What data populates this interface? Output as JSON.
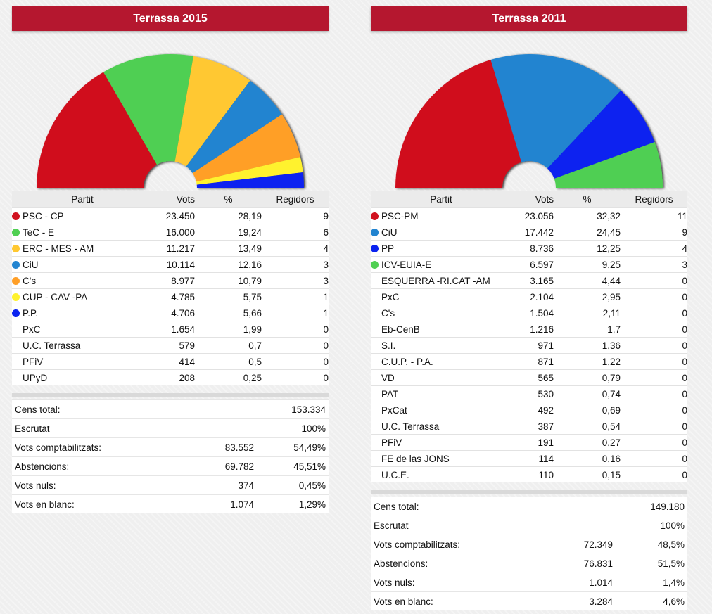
{
  "chart_data": [
    {
      "type": "pie",
      "subtype": "parliament-hemicycle",
      "title": "Terrassa 2015",
      "columns": [
        "Partit",
        "Vots",
        "%",
        "Regidors"
      ],
      "parties": [
        {
          "name": "PSC - CP",
          "votes": "23.450",
          "pct": "28,19",
          "seats": 9,
          "color": "#d0111e"
        },
        {
          "name": "TeC - E",
          "votes": "16.000",
          "pct": "19,24",
          "seats": 6,
          "color": "#4fcf52"
        },
        {
          "name": "ERC - MES - AM",
          "votes": "11.217",
          "pct": "13,49",
          "seats": 4,
          "color": "#ffc831"
        },
        {
          "name": "CiU",
          "votes": "10.114",
          "pct": "12,16",
          "seats": 3,
          "color": "#2284d0"
        },
        {
          "name": "C's",
          "votes": "8.977",
          "pct": "10,79",
          "seats": 3,
          "color": "#ff9f27"
        },
        {
          "name": "CUP - CAV -PA",
          "votes": "4.785",
          "pct": "5,75",
          "seats": 1,
          "color": "#fff22e"
        },
        {
          "name": "P.P.",
          "votes": "4.706",
          "pct": "5,66",
          "seats": 1,
          "color": "#0a22f0"
        },
        {
          "name": "PxC",
          "votes": "1.654",
          "pct": "1,99",
          "seats": 0,
          "color": ""
        },
        {
          "name": "U.C. Terrassa",
          "votes": "579",
          "pct": "0,7",
          "seats": 0,
          "color": ""
        },
        {
          "name": "PFiV",
          "votes": "414",
          "pct": "0,5",
          "seats": 0,
          "color": ""
        },
        {
          "name": "UPyD",
          "votes": "208",
          "pct": "0,25",
          "seats": 0,
          "color": ""
        }
      ],
      "summary": [
        {
          "label": "Cens total:",
          "v1": "",
          "v2": "153.334"
        },
        {
          "label": "Escrutat",
          "v1": "",
          "v2": "100%"
        },
        {
          "label": "Vots comptabilitzats:",
          "v1": "83.552",
          "v2": "54,49%"
        },
        {
          "label": "Abstencions:",
          "v1": "69.782",
          "v2": "45,51%"
        },
        {
          "label": "Vots nuls:",
          "v1": "374",
          "v2": "0,45%"
        },
        {
          "label": "Vots en blanc:",
          "v1": "1.074",
          "v2": "1,29%"
        }
      ]
    },
    {
      "type": "pie",
      "subtype": "parliament-hemicycle",
      "title": "Terrassa 2011",
      "columns": [
        "Partit",
        "Vots",
        "%",
        "Regidors"
      ],
      "parties": [
        {
          "name": "PSC-PM",
          "votes": "23.056",
          "pct": "32,32",
          "seats": 11,
          "color": "#d0111e"
        },
        {
          "name": "CiU",
          "votes": "17.442",
          "pct": "24,45",
          "seats": 9,
          "color": "#2284d0"
        },
        {
          "name": "PP",
          "votes": "8.736",
          "pct": "12,25",
          "seats": 4,
          "color": "#0a22f0"
        },
        {
          "name": "ICV-EUIA-E",
          "votes": "6.597",
          "pct": "9,25",
          "seats": 3,
          "color": "#4fcf52"
        },
        {
          "name": "ESQUERRA -RI.CAT -AM",
          "votes": "3.165",
          "pct": "4,44",
          "seats": 0,
          "color": ""
        },
        {
          "name": "PxC",
          "votes": "2.104",
          "pct": "2,95",
          "seats": 0,
          "color": ""
        },
        {
          "name": "C's",
          "votes": "1.504",
          "pct": "2,11",
          "seats": 0,
          "color": ""
        },
        {
          "name": "Eb-CenB",
          "votes": "1.216",
          "pct": "1,7",
          "seats": 0,
          "color": ""
        },
        {
          "name": "S.I.",
          "votes": "971",
          "pct": "1,36",
          "seats": 0,
          "color": ""
        },
        {
          "name": "C.U.P. - P.A.",
          "votes": "871",
          "pct": "1,22",
          "seats": 0,
          "color": ""
        },
        {
          "name": "VD",
          "votes": "565",
          "pct": "0,79",
          "seats": 0,
          "color": ""
        },
        {
          "name": "PAT",
          "votes": "530",
          "pct": "0,74",
          "seats": 0,
          "color": ""
        },
        {
          "name": "PxCat",
          "votes": "492",
          "pct": "0,69",
          "seats": 0,
          "color": ""
        },
        {
          "name": "U.C. Terrassa",
          "votes": "387",
          "pct": "0,54",
          "seats": 0,
          "color": ""
        },
        {
          "name": "PFiV",
          "votes": "191",
          "pct": "0,27",
          "seats": 0,
          "color": ""
        },
        {
          "name": "FE de las JONS",
          "votes": "114",
          "pct": "0,16",
          "seats": 0,
          "color": ""
        },
        {
          "name": "U.C.E.",
          "votes": "110",
          "pct": "0,15",
          "seats": 0,
          "color": ""
        }
      ],
      "summary": [
        {
          "label": "Cens total:",
          "v1": "",
          "v2": "149.180"
        },
        {
          "label": "Escrutat",
          "v1": "",
          "v2": "100%"
        },
        {
          "label": "Vots comptabilitzats:",
          "v1": "72.349",
          "v2": "48,5%"
        },
        {
          "label": "Abstencions:",
          "v1": "76.831",
          "v2": "51,5%"
        },
        {
          "label": "Vots nuls:",
          "v1": "1.014",
          "v2": "1,4%"
        },
        {
          "label": "Vots en blanc:",
          "v1": "3.284",
          "v2": "4,6%"
        }
      ]
    }
  ]
}
